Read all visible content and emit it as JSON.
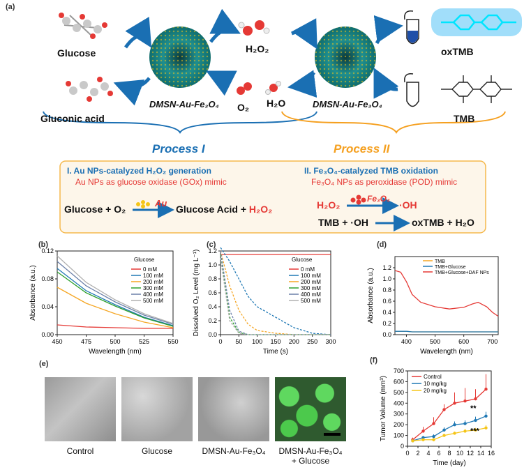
{
  "panel_a": {
    "label": "(a)",
    "glucose": "Glucose",
    "gluconic_acid": "Gluconic acid",
    "h2o2": "H₂O₂",
    "o2": "O₂",
    "h2o": "H₂O",
    "catalyst_1": "DMSN-Au-Fe₃O₄",
    "catalyst_2": "DMSN-Au-Fe₃O₄",
    "oxtmb": "oxTMB",
    "tmb": "TMB",
    "process_1": "Process I",
    "process_2": "Process II",
    "box": {
      "left_title": "I. Au NPs-catalyzed H₂O₂ generation",
      "left_sub": "Au NPs as glucose oxidase (GOx) mimic",
      "left_eq_lhs": "Glucose + O₂",
      "left_eq_arrow": "Au",
      "left_eq_rhs_1": "Glucose Acid + ",
      "left_eq_rhs_2": "H₂O₂",
      "right_title": "II. Fe₃O₄-catalyzed TMB oxidation",
      "right_sub": "Fe₃O₄ NPs as peroxidase (POD) mimic",
      "right_eq1_lhs": "H₂O₂",
      "right_eq1_arrow": "Fe₃O₄",
      "right_eq1_rhs": "·OH",
      "right_eq2_lhs": "TMB + ·OH",
      "right_eq2_rhs": "oxTMB + H₂O"
    },
    "colors": {
      "blue": "#1a6fb3",
      "orange": "#f5a020",
      "red": "#e53935",
      "box_border": "#f5b84c",
      "box_fill": "#fdf6ea"
    }
  },
  "panel_e": {
    "label": "(e)",
    "captions": [
      "Control",
      "Glucose",
      "DMSN-Au-Fe₃O₄",
      "DMSN-Au-Fe₃O₄",
      "+ Glucose"
    ]
  },
  "chart_data": [
    {
      "panel": "(b)",
      "type": "line",
      "xlabel": "Wavelength (nm)",
      "ylabel": "Absorbance (a.u.)",
      "xlim": [
        450,
        550
      ],
      "ylim": [
        0,
        0.12
      ],
      "xticks": [
        450,
        475,
        500,
        525,
        550
      ],
      "yticks": [
        0.0,
        0.04,
        0.08,
        0.12
      ],
      "legend_title": "Glucose",
      "legend_position": "top-right",
      "x": [
        450,
        475,
        500,
        525,
        550
      ],
      "series": [
        {
          "name": "0  mM",
          "color": "#e53935",
          "values": [
            0.014,
            0.011,
            0.01,
            0.009,
            0.009
          ]
        },
        {
          "name": "100 mM",
          "color": "#1f78b4",
          "values": [
            0.095,
            0.063,
            0.043,
            0.025,
            0.013
          ]
        },
        {
          "name": "200 mM",
          "color": "#f5a623",
          "values": [
            0.068,
            0.045,
            0.03,
            0.018,
            0.01
          ]
        },
        {
          "name": "300 mM",
          "color": "#2ca02c",
          "values": [
            0.09,
            0.06,
            0.041,
            0.024,
            0.012
          ]
        },
        {
          "name": "400 mM",
          "color": "#6a7fa8",
          "values": [
            0.105,
            0.07,
            0.047,
            0.028,
            0.015
          ]
        },
        {
          "name": "500 mM",
          "color": "#b0b0b0",
          "values": [
            0.113,
            0.075,
            0.05,
            0.03,
            0.016
          ]
        }
      ]
    },
    {
      "panel": "(c)",
      "type": "line",
      "xlabel": "Time (s)",
      "ylabel": "Dissolved O₂ Level (mg L⁻¹)",
      "xlim": [
        0,
        300
      ],
      "ylim": [
        0,
        1.2
      ],
      "xticks": [
        0,
        50,
        100,
        150,
        200,
        250,
        300
      ],
      "yticks": [
        0.0,
        0.2,
        0.4,
        0.6,
        0.8,
        1.0,
        1.2
      ],
      "legend_title": "Glucose",
      "legend_position": "right",
      "x": [
        0,
        25,
        50,
        75,
        100,
        150,
        200,
        250,
        300
      ],
      "series": [
        {
          "name": "0  mM",
          "color": "#e53935",
          "values": [
            1.15,
            1.15,
            1.15,
            1.15,
            1.15,
            1.15,
            1.15,
            1.15,
            1.15
          ]
        },
        {
          "name": "100 mM",
          "color": "#1f78b4",
          "values": [
            1.25,
            1.05,
            0.8,
            0.55,
            0.4,
            0.25,
            0.1,
            0.02,
            0.0
          ]
        },
        {
          "name": "200 mM",
          "color": "#f5a623",
          "values": [
            1.2,
            0.7,
            0.35,
            0.15,
            0.06,
            0.02,
            0.0,
            0.0,
            0.0
          ]
        },
        {
          "name": "300 mM",
          "color": "#2ca02c",
          "values": [
            1.15,
            0.25,
            0.03,
            0.0,
            0.0,
            0.0,
            0.0,
            0.0,
            0.0
          ]
        },
        {
          "name": "400 mM",
          "color": "#6a7fa8",
          "values": [
            1.2,
            0.35,
            0.05,
            0.0,
            0.0,
            0.0,
            0.0,
            0.0,
            0.0
          ]
        },
        {
          "name": "500 mM",
          "color": "#b0b0b0",
          "values": [
            1.1,
            0.2,
            0.02,
            0.0,
            0.0,
            0.0,
            0.0,
            0.0,
            0.0
          ]
        }
      ]
    },
    {
      "panel": "(d)",
      "type": "line",
      "xlabel": "Wavelength (nm)",
      "ylabel": "Absorbance (a.u.)",
      "xlim": [
        360,
        720
      ],
      "ylim": [
        0,
        1.4
      ],
      "xticks": [
        400,
        500,
        600,
        700
      ],
      "yticks": [
        0.0,
        0.2,
        0.4,
        0.6,
        0.8,
        1.0,
        1.2
      ],
      "legend_position": "top-right",
      "x": [
        360,
        380,
        400,
        420,
        450,
        500,
        550,
        600,
        630,
        650,
        680,
        700,
        720
      ],
      "series": [
        {
          "name": "TMB",
          "color": "#f5a623",
          "values": [
            0.06,
            0.06,
            0.06,
            0.05,
            0.05,
            0.05,
            0.05,
            0.05,
            0.05,
            0.05,
            0.05,
            0.05,
            0.05
          ]
        },
        {
          "name": "TMB+Glucose",
          "color": "#1f78b4",
          "values": [
            0.06,
            0.06,
            0.06,
            0.05,
            0.05,
            0.05,
            0.05,
            0.05,
            0.05,
            0.05,
            0.05,
            0.05,
            0.05
          ]
        },
        {
          "name": "TMB+Glucose+DAF NPs",
          "color": "#e53935",
          "values": [
            1.15,
            1.12,
            0.95,
            0.72,
            0.58,
            0.5,
            0.46,
            0.49,
            0.55,
            0.58,
            0.5,
            0.4,
            0.33
          ]
        }
      ]
    },
    {
      "panel": "(f)",
      "type": "line",
      "xlabel": "Time (day)",
      "ylabel": "Tumor Volume (mm³)",
      "xlim": [
        0,
        16
      ],
      "ylim": [
        0,
        700
      ],
      "xticks": [
        0,
        2,
        4,
        6,
        8,
        10,
        12,
        14,
        16
      ],
      "yticks": [
        0,
        100,
        200,
        300,
        400,
        500,
        600,
        700
      ],
      "legend_position": "top-left",
      "x": [
        1,
        3,
        5,
        7,
        9,
        11,
        13,
        15
      ],
      "series": [
        {
          "name": "Control",
          "color": "#e53935",
          "values": [
            60,
            140,
            210,
            340,
            400,
            420,
            440,
            530
          ],
          "errors": [
            20,
            40,
            60,
            50,
            100,
            120,
            90,
            140
          ]
        },
        {
          "name": "10 mg/kg",
          "color": "#1f78b4",
          "values": [
            50,
            80,
            90,
            150,
            200,
            210,
            240,
            280
          ],
          "errors": [
            10,
            15,
            20,
            25,
            30,
            30,
            35,
            40
          ]
        },
        {
          "name": "20 mg/kg",
          "color": "#f5c518",
          "values": [
            50,
            60,
            60,
            100,
            120,
            140,
            150,
            170
          ],
          "errors": [
            10,
            10,
            10,
            15,
            15,
            20,
            20,
            25
          ]
        }
      ],
      "annotations": [
        "**",
        "***"
      ]
    }
  ]
}
